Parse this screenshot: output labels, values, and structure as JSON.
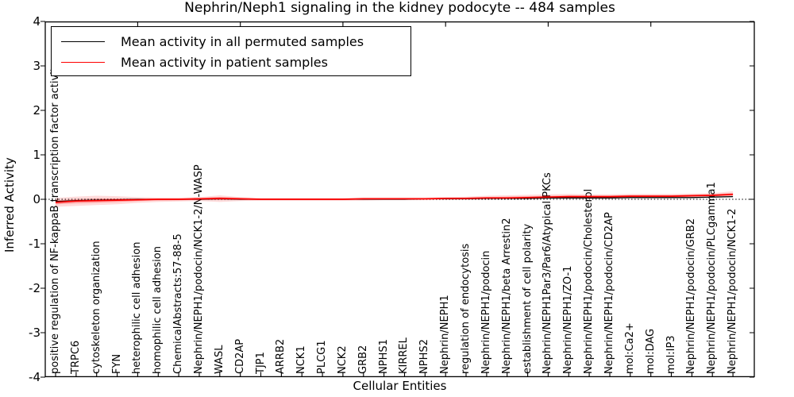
{
  "chart_data": {
    "type": "line",
    "title": "Nephrin/Neph1 signaling in the kidney podocyte -- 484 samples",
    "xlabel": "Cellular Entities",
    "ylabel": "Inferred Activity",
    "ylim": [
      -4,
      4
    ],
    "yticks": [
      4,
      3,
      2,
      1,
      0,
      -1,
      -2,
      -3,
      -4
    ],
    "grid": false,
    "legend_position": "upper left",
    "zero_line": {
      "y": 0,
      "style": "dotted",
      "color": "#000000"
    },
    "categories": [
      "positive regulation of NF-kappaB transcription factor activity",
      "TRPC6",
      "cytoskeleton organization",
      "FYN",
      "heterophilic cell adhesion",
      "homophilic cell adhesion",
      "ChemicalAbstracts:57-88-5",
      "Nephrin/NEPH1/podocin/NCK1-2/N-WASP",
      "WASL",
      "CD2AP",
      "TJP1",
      "ARRB2",
      "NCK1",
      "PLCG1",
      "NCK2",
      "GRB2",
      "NPHS1",
      "KIRREL",
      "NPHS2",
      "Nephrin/NEPH1",
      "regulation of endocytosis",
      "Nephrin/NEPH1/podocin",
      "Nephrin/NEPH1/beta Arrestin2",
      "establishment of cell polarity",
      "Nephrin/NEPH1Par3/Par6/Atypical PKCs",
      "Nephrin/NEPH1/ZO-1",
      "Nephrin/NEPH1/podocin/Cholesterol",
      "Nephrin/NEPH1/podocin/CD2AP",
      "mol:Ca2+",
      "mol:DAG",
      "mol:IP3",
      "Nephrin/NEPH1/podocin/GRB2",
      "Nephrin/NEPH1/podocin/PLCgamma1",
      "Nephrin/NEPH1/podocin/NCK1-2"
    ],
    "series": [
      {
        "name": "Mean activity in all permuted samples",
        "color": "#000000",
        "values": [
          -0.05,
          -0.03,
          -0.02,
          -0.01,
          0,
          0,
          0,
          0,
          0.01,
          0,
          0,
          0,
          0,
          0,
          0,
          0,
          0,
          0,
          0.01,
          0.01,
          0.01,
          0.02,
          0.02,
          0.02,
          0.03,
          0.03,
          0.03,
          0.03,
          0.04,
          0.04,
          0.04,
          0.04,
          0.05,
          0.06
        ]
      },
      {
        "name": "Mean activity in patient samples",
        "color": "#ff0000",
        "values": [
          -0.07,
          -0.04,
          -0.03,
          -0.02,
          -0.01,
          0,
          0,
          0.01,
          0.02,
          0.01,
          0,
          0,
          0,
          0,
          0,
          0.01,
          0.01,
          0.01,
          0.01,
          0.02,
          0.02,
          0.03,
          0.03,
          0.04,
          0.05,
          0.06,
          0.06,
          0.06,
          0.07,
          0.07,
          0.07,
          0.08,
          0.09,
          0.11
        ]
      }
    ],
    "band": {
      "name": "patient sample spread",
      "color": "#ff0000",
      "opacity_outer": 0.14,
      "opacity_inner": 0.26,
      "upper": [
        0.03,
        0.06,
        0.08,
        0.07,
        0.05,
        0.04,
        0.04,
        0.05,
        0.09,
        0.05,
        0.03,
        0.03,
        0.03,
        0.03,
        0.03,
        0.04,
        0.04,
        0.04,
        0.04,
        0.05,
        0.06,
        0.08,
        0.09,
        0.1,
        0.11,
        0.12,
        0.11,
        0.11,
        0.12,
        0.12,
        0.12,
        0.13,
        0.14,
        0.18
      ],
      "lower": [
        -0.17,
        -0.15,
        -0.13,
        -0.11,
        -0.08,
        -0.06,
        -0.05,
        -0.04,
        -0.06,
        -0.04,
        -0.03,
        -0.03,
        -0.03,
        -0.03,
        -0.03,
        -0.03,
        -0.02,
        -0.02,
        -0.02,
        -0.02,
        -0.01,
        -0.01,
        0,
        0,
        0.01,
        0.01,
        0.01,
        0.01,
        0.02,
        0.02,
        0.02,
        0.03,
        0.04,
        0.05
      ]
    }
  },
  "colors": {
    "background": "#ffffff",
    "axis": "#000000"
  }
}
